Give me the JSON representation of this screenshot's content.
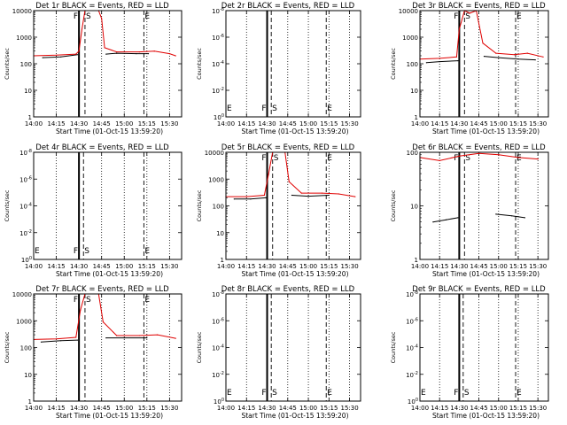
{
  "chart_data": [
    {
      "type": "line",
      "title": "Det 1r BLACK = Events, RED = LLD",
      "ylabel": "Counts/sec",
      "xlabel": "Start Time (01-Oct-15 13:59:20)",
      "x_ticks": [
        "14:00",
        "14:15",
        "14:30",
        "14:45",
        "15:00",
        "15:15",
        "15:30"
      ],
      "y_scale": "log",
      "y_ticks": [
        "1",
        "10",
        "100",
        "1000",
        "10000"
      ],
      "ylim": [
        1,
        10000
      ],
      "markers": [
        {
          "label": "F",
          "time": "14:30"
        },
        {
          "label": "S",
          "time": "14:34"
        },
        {
          "label": "E",
          "time": "15:13"
        }
      ],
      "events_series": [
        {
          "x": "14:06",
          "y": 170
        },
        {
          "x": "14:18",
          "y": 180
        },
        {
          "x": "14:29",
          "y": 220
        },
        {
          "x": "14:48",
          "y": 230
        },
        {
          "x": "14:55",
          "y": 250
        },
        {
          "x": "15:08",
          "y": 240
        },
        {
          "x": "15:16",
          "y": 240
        }
      ],
      "lld_series": [
        {
          "x": "14:00",
          "y": 200
        },
        {
          "x": "14:15",
          "y": 210
        },
        {
          "x": "14:28",
          "y": 230
        },
        {
          "x": "14:30",
          "y": 300
        },
        {
          "x": "14:32",
          "y": 2000
        },
        {
          "x": "14:34",
          "y": 10000
        },
        {
          "x": "14:43",
          "y": 10000
        },
        {
          "x": "14:45",
          "y": 5000
        },
        {
          "x": "14:47",
          "y": 400
        },
        {
          "x": "14:55",
          "y": 280
        },
        {
          "x": "15:10",
          "y": 280
        },
        {
          "x": "15:20",
          "y": 300
        },
        {
          "x": "15:30",
          "y": 240
        },
        {
          "x": "15:34",
          "y": 200
        }
      ]
    },
    {
      "type": "line",
      "title": "Det 2r BLACK = Events, RED = LLD",
      "ylabel": "Counts/sec",
      "xlabel": "Start Time (01-Oct-15 13:59:20)",
      "x_ticks": [
        "14:00",
        "14:15",
        "14:30",
        "14:45",
        "15:00",
        "15:15",
        "15:30"
      ],
      "y_scale": "log",
      "y_ticks": [
        "10^0",
        "10^-2",
        "10^-4",
        "10^-6",
        "10^-8"
      ],
      "markers": [
        {
          "label": "E",
          "time": "14:00"
        },
        {
          "label": "F",
          "time": "14:30"
        },
        {
          "label": "S",
          "time": "14:33"
        },
        {
          "label": "E",
          "time": "15:13"
        }
      ],
      "events_series": [],
      "lld_series": []
    },
    {
      "type": "line",
      "title": "Det 3r BLACK = Events, RED = LLD",
      "ylabel": "Counts/sec",
      "xlabel": "Start Time (01-Oct-15 13:59:20)",
      "x_ticks": [
        "14:00",
        "14:15",
        "14:30",
        "14:45",
        "15:00",
        "15:15",
        "15:30"
      ],
      "y_scale": "log",
      "y_ticks": [
        "1",
        "10",
        "100",
        "1000",
        "10000"
      ],
      "ylim": [
        1,
        10000
      ],
      "markers": [
        {
          "label": "F",
          "time": "14:30"
        },
        {
          "label": "S",
          "time": "14:34"
        },
        {
          "label": "E",
          "time": "15:13"
        }
      ],
      "events_series": [
        {
          "x": "14:05",
          "y": 110
        },
        {
          "x": "14:15",
          "y": 120
        },
        {
          "x": "14:29",
          "y": 130
        },
        {
          "x": "14:49",
          "y": 190
        },
        {
          "x": "15:00",
          "y": 170
        },
        {
          "x": "15:15",
          "y": 150
        },
        {
          "x": "15:28",
          "y": 140
        }
      ],
      "lld_series": [
        {
          "x": "14:00",
          "y": 150
        },
        {
          "x": "14:15",
          "y": 160
        },
        {
          "x": "14:28",
          "y": 180
        },
        {
          "x": "14:30",
          "y": 2000
        },
        {
          "x": "14:34",
          "y": 10000
        },
        {
          "x": "14:38",
          "y": 8000
        },
        {
          "x": "14:43",
          "y": 10000
        },
        {
          "x": "14:48",
          "y": 600
        },
        {
          "x": "14:58",
          "y": 250
        },
        {
          "x": "15:12",
          "y": 220
        },
        {
          "x": "15:22",
          "y": 250
        },
        {
          "x": "15:34",
          "y": 180
        }
      ]
    },
    {
      "type": "line",
      "title": "Det 4r BLACK = Events, RED = LLD",
      "ylabel": "Counts/sec",
      "xlabel": "Start Time (01-Oct-15 13:59:20)",
      "x_ticks": [
        "14:00",
        "14:15",
        "14:30",
        "14:45",
        "15:00",
        "15:15",
        "15:30"
      ],
      "y_scale": "log",
      "y_ticks": [
        "10^0",
        "10^-2",
        "10^-4",
        "10^-6",
        "10^-8"
      ],
      "markers": [
        {
          "label": "E",
          "time": "14:00"
        },
        {
          "label": "F",
          "time": "14:30"
        },
        {
          "label": "S",
          "time": "14:33"
        },
        {
          "label": "E",
          "time": "15:13"
        }
      ],
      "events_series": [],
      "lld_series": []
    },
    {
      "type": "line",
      "title": "Det 5r BLACK = Events, RED = LLD",
      "ylabel": "Counts/sec",
      "xlabel": "Start Time (01-Oct-15 13:59:20)",
      "x_ticks": [
        "14:00",
        "14:15",
        "14:30",
        "14:45",
        "15:00",
        "15:15",
        "15:30"
      ],
      "y_scale": "log",
      "y_ticks": [
        "1",
        "10",
        "100",
        "1000",
        "10000"
      ],
      "ylim": [
        1,
        10000
      ],
      "markers": [
        {
          "label": "F",
          "time": "14:30"
        },
        {
          "label": "S",
          "time": "14:34"
        },
        {
          "label": "E",
          "time": "15:13"
        }
      ],
      "events_series": [
        {
          "x": "14:06",
          "y": 180
        },
        {
          "x": "14:18",
          "y": 180
        },
        {
          "x": "14:29",
          "y": 200
        },
        {
          "x": "14:48",
          "y": 250
        },
        {
          "x": "15:00",
          "y": 230
        },
        {
          "x": "15:15",
          "y": 250
        }
      ],
      "lld_series": [
        {
          "x": "14:00",
          "y": 220
        },
        {
          "x": "14:15",
          "y": 220
        },
        {
          "x": "14:28",
          "y": 250
        },
        {
          "x": "14:31",
          "y": 1500
        },
        {
          "x": "14:34",
          "y": 10000
        },
        {
          "x": "14:43",
          "y": 10000
        },
        {
          "x": "14:46",
          "y": 800
        },
        {
          "x": "14:55",
          "y": 300
        },
        {
          "x": "15:10",
          "y": 300
        },
        {
          "x": "15:22",
          "y": 280
        },
        {
          "x": "15:34",
          "y": 220
        }
      ]
    },
    {
      "type": "line",
      "title": "Det 6r BLACK = Events, RED = LLD",
      "ylabel": "Counts/sec",
      "xlabel": "Start Time (01-Oct-15 13:59:20)",
      "x_ticks": [
        "14:00",
        "14:15",
        "14:30",
        "14:45",
        "15:00",
        "15:15",
        "15:30"
      ],
      "y_scale": "log",
      "y_ticks": [
        "1",
        "10",
        "100"
      ],
      "ylim": [
        1,
        100
      ],
      "markers": [
        {
          "label": "F",
          "time": "14:30"
        },
        {
          "label": "S",
          "time": "14:34"
        },
        {
          "label": "E",
          "time": "15:13"
        }
      ],
      "events_series": [
        {
          "x": "14:10",
          "y": 5
        },
        {
          "x": "14:20",
          "y": 5.5
        },
        {
          "x": "14:29",
          "y": 6
        },
        {
          "x": "14:58",
          "y": 7
        },
        {
          "x": "15:10",
          "y": 6.5
        },
        {
          "x": "15:20",
          "y": 6
        }
      ],
      "lld_series": [
        {
          "x": "14:00",
          "y": 80
        },
        {
          "x": "14:15",
          "y": 70
        },
        {
          "x": "14:30",
          "y": 85
        },
        {
          "x": "14:45",
          "y": 95
        },
        {
          "x": "15:00",
          "y": 90
        },
        {
          "x": "15:15",
          "y": 80
        },
        {
          "x": "15:30",
          "y": 75
        }
      ]
    },
    {
      "type": "line",
      "title": "Det 7r BLACK = Events, RED = LLD",
      "ylabel": "Counts/sec",
      "xlabel": "Start Time (01-Oct-15 13:59:20)",
      "x_ticks": [
        "14:00",
        "14:15",
        "14:30",
        "14:45",
        "15:00",
        "15:15",
        "15:30"
      ],
      "y_scale": "log",
      "y_ticks": [
        "1",
        "10",
        "100",
        "1000",
        "10000"
      ],
      "ylim": [
        1,
        10000
      ],
      "markers": [
        {
          "label": "F",
          "time": "14:30"
        },
        {
          "label": "S",
          "time": "14:34"
        },
        {
          "label": "E",
          "time": "15:13"
        }
      ],
      "events_series": [
        {
          "x": "14:05",
          "y": 160
        },
        {
          "x": "14:18",
          "y": 180
        },
        {
          "x": "14:29",
          "y": 190
        },
        {
          "x": "14:48",
          "y": 230
        },
        {
          "x": "15:00",
          "y": 230
        },
        {
          "x": "15:15",
          "y": 230
        }
      ],
      "lld_series": [
        {
          "x": "14:00",
          "y": 200
        },
        {
          "x": "14:15",
          "y": 210
        },
        {
          "x": "14:28",
          "y": 240
        },
        {
          "x": "14:31",
          "y": 2500
        },
        {
          "x": "14:34",
          "y": 10000
        },
        {
          "x": "14:43",
          "y": 10000
        },
        {
          "x": "14:46",
          "y": 900
        },
        {
          "x": "14:55",
          "y": 280
        },
        {
          "x": "15:10",
          "y": 280
        },
        {
          "x": "15:22",
          "y": 300
        },
        {
          "x": "15:34",
          "y": 220
        }
      ]
    },
    {
      "type": "line",
      "title": "Det 8r BLACK = Events, RED = LLD",
      "ylabel": "Counts/sec",
      "xlabel": "Start Time (01-Oct-15 13:59:20)",
      "x_ticks": [
        "14:00",
        "14:15",
        "14:30",
        "14:45",
        "15:00",
        "15:15",
        "15:30"
      ],
      "y_scale": "log",
      "y_ticks": [
        "10^0",
        "10^-2",
        "10^-4",
        "10^-6",
        "10^-8"
      ],
      "markers": [
        {
          "label": "E",
          "time": "14:00"
        },
        {
          "label": "F",
          "time": "14:30"
        },
        {
          "label": "S",
          "time": "14:33"
        },
        {
          "label": "E",
          "time": "15:13"
        }
      ],
      "events_series": [],
      "lld_series": []
    },
    {
      "type": "line",
      "title": "Det 9r BLACK = Events, RED = LLD",
      "ylabel": "Counts/sec",
      "xlabel": "Start Time (01-Oct-15 13:59:20)",
      "x_ticks": [
        "14:00",
        "14:15",
        "14:30",
        "14:45",
        "15:00",
        "15:15",
        "15:30"
      ],
      "y_scale": "log",
      "y_ticks": [
        "10^0",
        "10^-2",
        "10^-4",
        "10^-6",
        "10^-8"
      ],
      "markers": [
        {
          "label": "E",
          "time": "14:00"
        },
        {
          "label": "F",
          "time": "14:30"
        },
        {
          "label": "S",
          "time": "14:33"
        },
        {
          "label": "E",
          "time": "15:13"
        }
      ],
      "events_series": [],
      "lld_series": []
    }
  ],
  "colors": {
    "events": "#000000",
    "lld": "#e00000",
    "axes": "#000000",
    "background": "#ffffff"
  }
}
